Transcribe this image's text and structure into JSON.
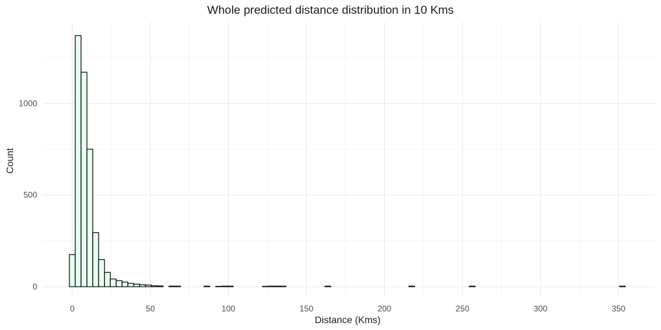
{
  "chart_data": {
    "type": "bar",
    "title": "Whole predicted distance distribution in 10 Kms",
    "xlabel": "Distance (Kms)",
    "ylabel": "Count",
    "xlim": [
      -12,
      372
    ],
    "ylim": [
      0,
      1450
    ],
    "binwidth": 3.75,
    "x_ticks": [
      0,
      50,
      100,
      150,
      200,
      250,
      300,
      350
    ],
    "y_ticks": [
      0,
      500,
      1000
    ],
    "grid": true,
    "fill_color": "#e6fff0",
    "outline_color": "#000000",
    "bins": [
      {
        "x": 0,
        "count": 175
      },
      {
        "x": 3.75,
        "count": 1370
      },
      {
        "x": 7.5,
        "count": 1170
      },
      {
        "x": 11.25,
        "count": 750
      },
      {
        "x": 15,
        "count": 295
      },
      {
        "x": 18.75,
        "count": 148
      },
      {
        "x": 22.5,
        "count": 78
      },
      {
        "x": 26.25,
        "count": 42
      },
      {
        "x": 30,
        "count": 33
      },
      {
        "x": 33.75,
        "count": 25
      },
      {
        "x": 37.5,
        "count": 18
      },
      {
        "x": 41.25,
        "count": 14
      },
      {
        "x": 45,
        "count": 11
      },
      {
        "x": 48.75,
        "count": 9
      },
      {
        "x": 52.5,
        "count": 5
      },
      {
        "x": 56.25,
        "count": 4
      },
      {
        "x": 63.75,
        "count": 3
      },
      {
        "x": 67.5,
        "count": 3
      },
      {
        "x": 86.25,
        "count": 3
      },
      {
        "x": 93.75,
        "count": 2
      },
      {
        "x": 97.5,
        "count": 3
      },
      {
        "x": 101.25,
        "count": 3
      },
      {
        "x": 123.75,
        "count": 2
      },
      {
        "x": 127.5,
        "count": 3
      },
      {
        "x": 131.25,
        "count": 3
      },
      {
        "x": 135,
        "count": 3
      },
      {
        "x": 163.75,
        "count": 3
      },
      {
        "x": 217.5,
        "count": 3
      },
      {
        "x": 256.25,
        "count": 3
      },
      {
        "x": 352.5,
        "count": 3
      }
    ]
  }
}
